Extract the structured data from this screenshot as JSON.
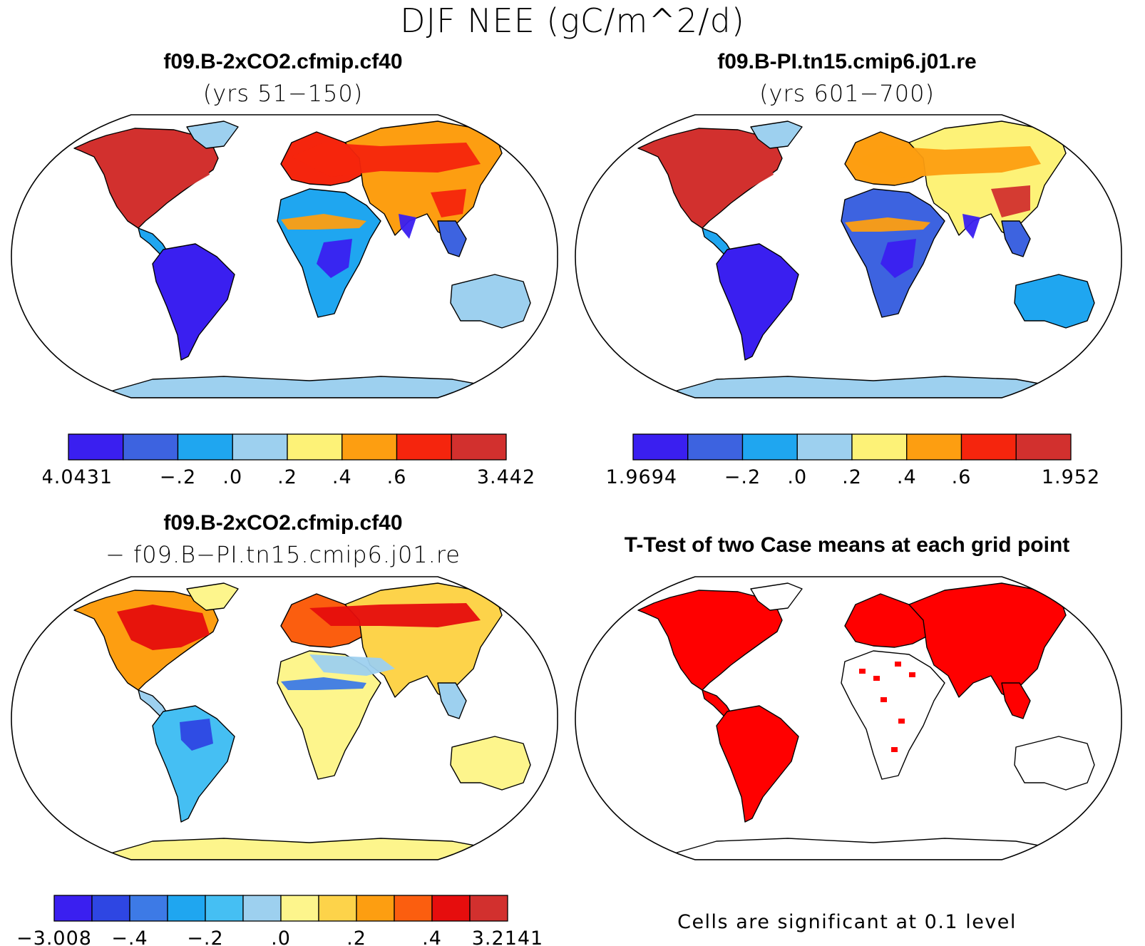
{
  "figure_title": "DJF NEE (gC/m^2/d)",
  "panels": [
    {
      "title_line1": "f09.B-2xCO2.cfmip.cf40",
      "title_line2": "(yrs 51−150)",
      "colors": [
        "#3a1ff0",
        "#3d63e0",
        "#1fa6f0",
        "#9dd0ef",
        "#fdf277",
        "#fd9e11",
        "#f5250d",
        "#d2302e"
      ],
      "tick_labels": [
        "−4.0431",
        "−.2",
        ".0",
        ".2",
        ".4",
        ".6",
        "3.442"
      ]
    },
    {
      "title_line1": "f09.B-PI.tn15.cmip6.j01.re",
      "title_line2": "(yrs 601−700)",
      "colors": [
        "#3a1ff0",
        "#3d63e0",
        "#1fa6f0",
        "#9dd0ef",
        "#fdf277",
        "#fd9e11",
        "#f5250d",
        "#d2302e"
      ],
      "tick_labels": [
        "−1.9694",
        "−.2",
        ".0",
        ".2",
        ".4",
        ".6",
        "1.952"
      ]
    },
    {
      "title_line1": "f09.B-2xCO2.cfmip.cf40",
      "title_line2": "− f09.B−PI.tn15.cmip6.j01.re",
      "colors": [
        "#3a1ff0",
        "#2e46e3",
        "#3d7ae6",
        "#1fa6f0",
        "#45bff3",
        "#9dd0ef",
        "#fdf58c",
        "#fdd34a",
        "#fd9e11",
        "#fb5e0f",
        "#e60d0d",
        "#d2302e"
      ],
      "tick_labels": [
        "−3.008",
        "−.4",
        "−.2",
        ".0",
        ".2",
        ".4",
        "3.2141"
      ]
    },
    {
      "title_line1": "T-Test of two Case means at each grid point",
      "note": "Cells are significant at 0.1 level",
      "significant_color": "#ff0000"
    }
  ]
}
